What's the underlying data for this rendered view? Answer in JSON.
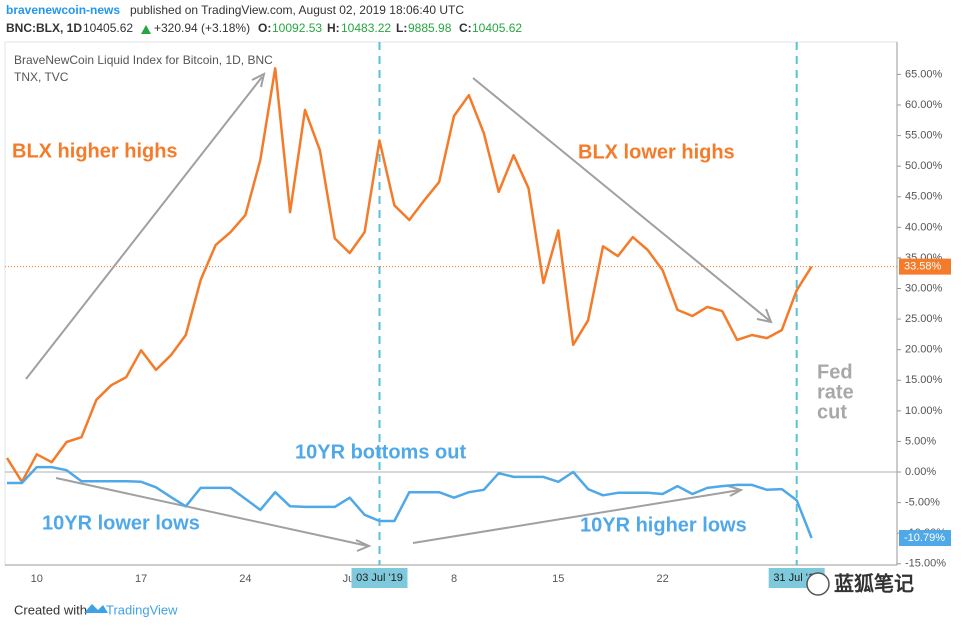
{
  "chart_data": {
    "type": "line",
    "header": {
      "author": "bravenewcoin-news",
      "published": "published on TradingView.com, August 02, 2019 18:06:40 UTC"
    },
    "ticker": {
      "symbol": "BNC:BLX, 1D",
      "price": "10405.62",
      "change": "+320.94 (+3.18%)",
      "open_label": "O:",
      "open": "10092.53",
      "high_label": "H:",
      "high": "10483.22",
      "low_label": "L:",
      "low": "9885.98",
      "close_label": "C:",
      "close": "10405.62"
    },
    "legend_lines": [
      "BraveNewCoin Liquid Index for Bitcoin, 1D, BNC",
      "TNX, TVC"
    ],
    "categories": [
      null,
      null,
      "10",
      null,
      null,
      null,
      null,
      null,
      null,
      "17",
      null,
      null,
      null,
      null,
      null,
      null,
      "24",
      null,
      null,
      null,
      null,
      null,
      null,
      "Jul",
      null,
      null,
      null,
      null,
      null,
      null,
      "8",
      null,
      null,
      null,
      null,
      null,
      null,
      "15",
      null,
      null,
      null,
      null,
      null,
      null,
      "22",
      null,
      null,
      null,
      null,
      null,
      null,
      null,
      null,
      null,
      null
    ],
    "series": [
      {
        "name": "BLX",
        "color": "#f47b2a",
        "last_label": "33.58%",
        "values": [
          2.3,
          -1.6,
          2.9,
          1.6,
          4.9,
          5.7,
          11.8,
          14.2,
          15.5,
          19.9,
          16.7,
          19.1,
          22.4,
          31.4,
          37.1,
          39.2,
          42.0,
          51.0,
          66.0,
          42.5,
          59.2,
          52.6,
          38.2,
          35.8,
          39.2,
          54.2,
          43.6,
          41.2,
          44.4,
          47.4,
          58.2,
          61.6,
          55.4,
          45.8,
          51.8,
          46.4,
          30.9,
          39.5,
          20.8,
          24.8,
          36.9,
          35.3,
          38.4,
          36.3,
          33.0,
          26.5,
          25.5,
          27.0,
          26.3,
          21.6,
          22.4,
          21.9,
          23.2,
          29.7,
          33.58
        ]
      },
      {
        "name": "TNX",
        "color": "#4fa8e8",
        "last_label": "-10.79%",
        "values": [
          -1.8,
          -1.8,
          0.8,
          0.8,
          0.3,
          -1.5,
          -1.5,
          -1.5,
          -1.5,
          -1.6,
          -2.5,
          -4.1,
          -5.6,
          -2.6,
          -2.6,
          -2.6,
          -4.4,
          -6.2,
          -3.3,
          -5.6,
          -5.7,
          -5.7,
          -5.7,
          -4.2,
          -7.0,
          -8.0,
          -8.0,
          -3.3,
          -3.3,
          -3.3,
          -4.2,
          -3.3,
          -2.9,
          -0.2,
          -0.8,
          -0.8,
          -0.8,
          -1.6,
          0.0,
          -2.8,
          -3.8,
          -3.4,
          -3.4,
          -3.4,
          -3.6,
          -2.3,
          -3.6,
          -2.6,
          -2.3,
          -2.1,
          -2.1,
          -2.9,
          -2.8,
          -4.6,
          -10.79
        ]
      }
    ],
    "ylim": [
      -15.2,
      70.3
    ],
    "yticks": [
      {
        "value": 65,
        "label": "65.00%"
      },
      {
        "value": 60,
        "label": "60.00%"
      },
      {
        "value": 55,
        "label": "55.00%"
      },
      {
        "value": 50,
        "label": "50.00%"
      },
      {
        "value": 45,
        "label": "45.00%"
      },
      {
        "value": 40,
        "label": "40.00%"
      },
      {
        "value": 35,
        "label": "35.00%"
      },
      {
        "value": 30,
        "label": "30.00%"
      },
      {
        "value": 25,
        "label": "25.00%"
      },
      {
        "value": 20,
        "label": "20.00%"
      },
      {
        "value": 15,
        "label": "15.00%"
      },
      {
        "value": 10,
        "label": "10.00%"
      },
      {
        "value": 5,
        "label": "5.00%"
      },
      {
        "value": 0,
        "label": "0.00%"
      },
      {
        "value": -5,
        "label": "-5.00%"
      },
      {
        "value": -10,
        "label": "-10.00%"
      },
      {
        "value": -15,
        "label": "-15.00%"
      }
    ],
    "zero_line": true,
    "date_markers": [
      "03 Jul '19",
      "31 Jul '19"
    ],
    "annotations": [
      "BLX higher highs",
      "BLX lower highs",
      "10YR bottoms out",
      "10YR lower lows",
      "10YR higher lows",
      "Fed",
      "rate",
      "cut"
    ],
    "footer": {
      "created": "Created with",
      "brand": "TradingView"
    },
    "watermark": "蓝狐笔记"
  }
}
